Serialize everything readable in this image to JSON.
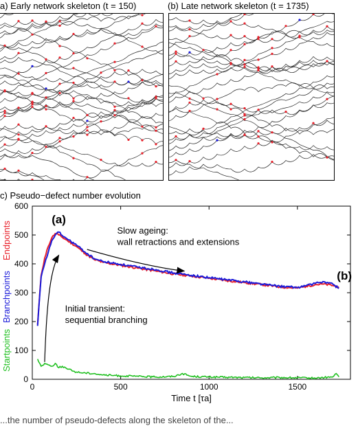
{
  "panels": {
    "a_title": "a) Early network skeleton (t = 150)",
    "b_title": "(b) Late network skeleton (t = 1735)",
    "c_title": "c) Pseudo−defect number evolution"
  },
  "caption_partial": "...the number of pseudo-defects along the skeleton of the...",
  "colors": {
    "startpoints": "#22c022",
    "branchpoints": "#1b1bd9",
    "endpoints": "#e8202a",
    "skeleton_line": "#222222"
  },
  "chart_data": {
    "type": "line",
    "title": "",
    "xlabel": "Time t [τa]",
    "ylabel_parts": [
      "Startpoints",
      "Branchpoints",
      "Endpoints"
    ],
    "xlim": [
      0,
      1800
    ],
    "ylim": [
      0,
      600
    ],
    "x_ticks": [
      0,
      500,
      1000,
      1500
    ],
    "y_ticks": [
      0,
      100,
      200,
      300,
      400,
      500,
      600
    ],
    "grid": false,
    "series": [
      {
        "name": "Endpoints",
        "color": "#e8202a",
        "x": [
          30,
          50,
          70,
          90,
          110,
          130,
          150,
          170,
          200,
          250,
          300,
          350,
          400,
          500,
          600,
          700,
          800,
          900,
          1000,
          1100,
          1200,
          1300,
          1400,
          1500,
          1550,
          1600,
          1650,
          1700,
          1735
        ],
        "y": [
          190,
          360,
          420,
          460,
          490,
          505,
          500,
          492,
          480,
          460,
          435,
          415,
          405,
          395,
          385,
          375,
          365,
          358,
          350,
          342,
          335,
          328,
          320,
          316,
          322,
          328,
          330,
          325,
          320
        ]
      },
      {
        "name": "Branchpoints",
        "color": "#1b1bd9",
        "x": [
          30,
          50,
          70,
          90,
          110,
          130,
          150,
          170,
          200,
          250,
          300,
          350,
          400,
          500,
          600,
          700,
          800,
          900,
          1000,
          1100,
          1200,
          1300,
          1400,
          1500,
          1550,
          1600,
          1650,
          1700,
          1735
        ],
        "y": [
          185,
          355,
          400,
          440,
          480,
          500,
          510,
          498,
          485,
          465,
          440,
          418,
          408,
          398,
          388,
          380,
          368,
          360,
          352,
          345,
          338,
          330,
          322,
          318,
          325,
          332,
          338,
          330,
          315
        ]
      },
      {
        "name": "Startpoints",
        "color": "#22c022",
        "x": [
          30,
          50,
          70,
          90,
          110,
          130,
          150,
          170,
          200,
          250,
          300,
          350,
          400,
          500,
          600,
          700,
          800,
          850,
          900,
          1000,
          1100,
          1200,
          1300,
          1400,
          1500,
          1600,
          1700,
          1720,
          1735
        ],
        "y": [
          70,
          45,
          55,
          50,
          45,
          55,
          40,
          45,
          35,
          25,
          22,
          20,
          15,
          12,
          10,
          8,
          10,
          20,
          10,
          8,
          7,
          6,
          5,
          6,
          5,
          4,
          8,
          20,
          8
        ]
      }
    ],
    "annotations": [
      {
        "id": "label-a",
        "text": "(a)",
        "x": 150,
        "y": 540
      },
      {
        "id": "label-b",
        "text": "(b)",
        "x": 1735,
        "y": 345
      },
      {
        "id": "slow-ageing-1",
        "text": "Slow ageing:",
        "x": 480,
        "y": 505
      },
      {
        "id": "slow-ageing-2",
        "text": "wall retractions and extensions",
        "x": 480,
        "y": 465
      },
      {
        "id": "initial-1",
        "text": "Initial transient:",
        "x": 185,
        "y": 235
      },
      {
        "id": "initial-2",
        "text": "sequential branching",
        "x": 185,
        "y": 195
      }
    ]
  }
}
